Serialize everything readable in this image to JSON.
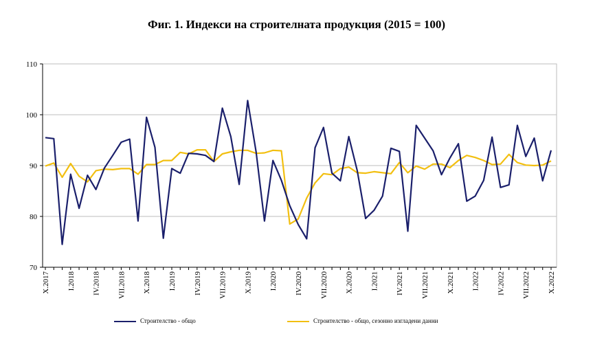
{
  "chart_data": {
    "type": "line",
    "title": "Фиг. 1. Индекси на строителната продукция (2015 = 100)",
    "xlabel": "",
    "ylabel": "",
    "ylim": [
      70,
      110
    ],
    "yticks": [
      70,
      80,
      90,
      100,
      110
    ],
    "grid": true,
    "legend_position": "bottom",
    "x": [
      "X.2017",
      "XI.2017",
      "XII.2017",
      "I.2018",
      "II.2018",
      "III.2018",
      "IV.2018",
      "V.2018",
      "VI.2018",
      "VII.2018",
      "VIII.2018",
      "IX.2018",
      "X.2018",
      "XI.2018",
      "XII.2018",
      "I.2019",
      "II.2019",
      "III.2019",
      "IV.2019",
      "V.2019",
      "VI.2019",
      "VII.2019",
      "VIII.2019",
      "IX.2019",
      "X.2019",
      "XI.2019",
      "XII.2019",
      "I.2020",
      "II.2020",
      "III.2020",
      "IV.2020",
      "V.2020",
      "VI.2020",
      "VII.2020",
      "VIII.2020",
      "IX.2020",
      "X.2020",
      "XI.2020",
      "XII.2020",
      "I.2021",
      "II.2021",
      "III.2021",
      "IV.2021",
      "V.2021",
      "VI.2021",
      "VII.2021",
      "VIII.2021",
      "IX.2021",
      "X.2021",
      "XI.2021",
      "XII.2021",
      "I.2022",
      "II.2022",
      "III.2022",
      "IV.2022",
      "V.2022",
      "VI.2022",
      "VII.2022",
      "VIII.2022",
      "IX.2022",
      "X.2022"
    ],
    "xtick_labels": [
      "X.2017",
      "I.2018",
      "IV.2018",
      "VII.2018",
      "X.2018",
      "I.2019",
      "IV.2019",
      "VII.2019",
      "X.2019",
      "I.2020",
      "IV.2020",
      "VII.2020",
      "X.2020",
      "I.2021",
      "IV.2021",
      "VII.2021",
      "X.2021",
      "I.2022",
      "IV.2022",
      "VII.2022",
      "X.2022"
    ],
    "series": [
      {
        "name": "Строителство - общо",
        "color": "#1a1f6b",
        "values": [
          95.5,
          95.3,
          74.5,
          88.3,
          81.6,
          88.1,
          85.3,
          89.5,
          92.0,
          94.6,
          95.2,
          79.1,
          99.5,
          93.6,
          75.7,
          89.4,
          88.5,
          92.4,
          92.3,
          92.0,
          90.8,
          101.3,
          95.7,
          86.3,
          102.8,
          92.7,
          79.1,
          91.0,
          87.1,
          82.1,
          78.4,
          75.6,
          93.5,
          97.5,
          88.5,
          87.0,
          95.7,
          89.0,
          79.6,
          81.2,
          84.0,
          93.4,
          92.8,
          77.1,
          97.9,
          95.4,
          92.9,
          88.2,
          91.5,
          94.3,
          83.0,
          84.0,
          87.1,
          95.6,
          85.7,
          86.2,
          97.9,
          91.8,
          95.4,
          87.0,
          93.0
        ]
      },
      {
        "name": "Строителство - общо, сезонно изгладени данни",
        "color": "#f2bf10",
        "values": [
          89.9,
          90.5,
          87.7,
          90.4,
          87.9,
          86.8,
          89.0,
          89.3,
          89.2,
          89.4,
          89.4,
          88.3,
          90.2,
          90.2,
          91.0,
          91.0,
          92.6,
          92.3,
          93.1,
          93.1,
          90.8,
          92.3,
          92.7,
          93.0,
          93.0,
          92.4,
          92.5,
          93.0,
          92.9,
          78.5,
          79.5,
          83.6,
          86.6,
          88.4,
          88.2,
          89.4,
          89.7,
          88.6,
          88.5,
          88.8,
          88.6,
          88.4,
          90.6,
          88.6,
          89.9,
          89.3,
          90.3,
          90.3,
          89.6,
          91.0,
          92.0,
          91.6,
          91.0,
          90.2,
          90.3,
          92.2,
          90.6,
          90.1,
          90.0,
          90.1,
          90.9
        ]
      }
    ]
  }
}
